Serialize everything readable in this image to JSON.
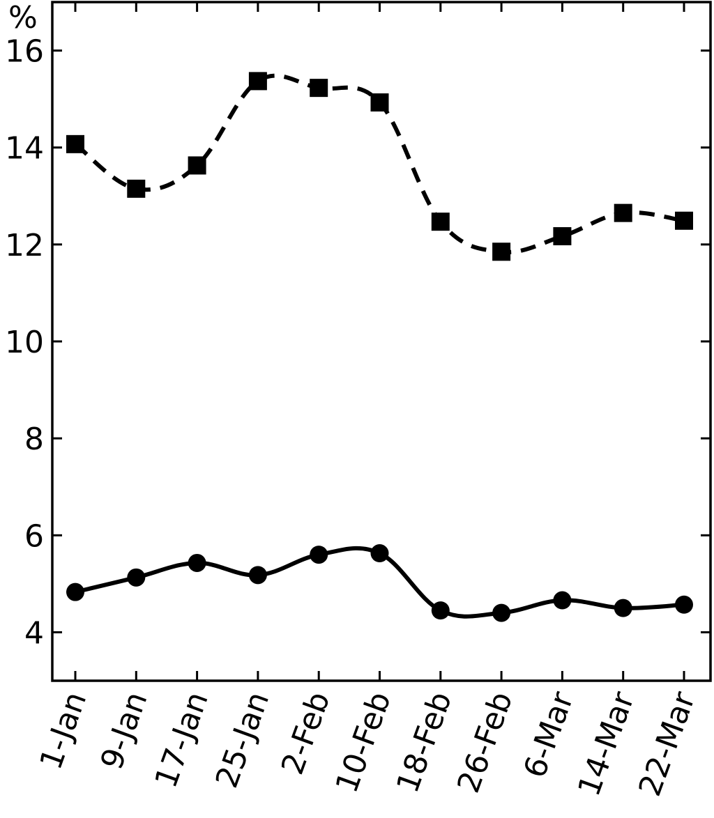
{
  "chart_data": {
    "type": "line",
    "y_unit_label": "%",
    "categories": [
      "1-Jan",
      "9-Jan",
      "17-Jan",
      "25-Jan",
      "2-Feb",
      "10-Feb",
      "18-Feb",
      "26-Feb",
      "6-Mar",
      "14-Mar",
      "22-Mar"
    ],
    "y_ticks": [
      "4",
      "6",
      "8",
      "10",
      "12",
      "14",
      "16"
    ],
    "ylim": [
      3,
      17
    ],
    "grid": false,
    "series": [
      {
        "marker": "square",
        "line_style": "dashed",
        "color": "#000000",
        "values": [
          14.07,
          13.15,
          13.63,
          15.37,
          15.23,
          14.93,
          12.47,
          11.85,
          12.17,
          12.65,
          12.49
        ]
      },
      {
        "marker": "circle",
        "line_style": "solid",
        "color": "#000000",
        "values": [
          4.83,
          5.13,
          5.43,
          5.18,
          5.6,
          5.63,
          4.45,
          4.4,
          4.66,
          4.5,
          4.57
        ]
      }
    ]
  }
}
